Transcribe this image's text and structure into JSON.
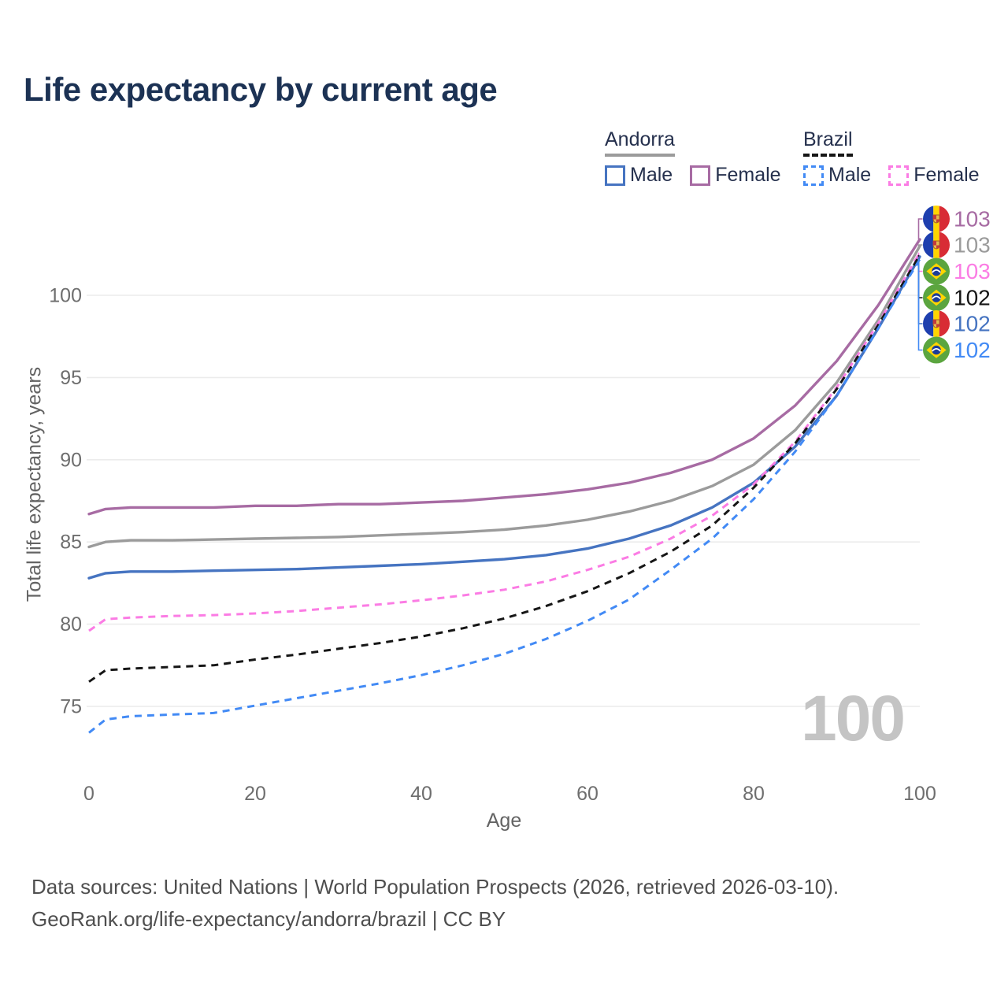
{
  "title": "Life expectancy by current age",
  "legend": {
    "groups": [
      {
        "label": "Andorra",
        "line_style": "solid",
        "items": [
          {
            "label": "Male"
          },
          {
            "label": "Female"
          }
        ]
      },
      {
        "label": "Brazil",
        "line_style": "dashed",
        "items": [
          {
            "label": "Male"
          },
          {
            "label": "Female"
          }
        ]
      }
    ]
  },
  "watermark": "100",
  "footer": {
    "line1": "Data sources: United Nations | World Population Prospects (2026, retrieved 2026-03-10).",
    "line2": "GeoRank.org/life-expectancy/andorra/brazil | CC BY"
  },
  "chart_data": {
    "type": "line",
    "title": "Life expectancy by current age",
    "xlabel": "Age",
    "ylabel": "Total life expectancy, years",
    "xlim": [
      0,
      100
    ],
    "ylim": [
      73,
      104
    ],
    "xticks": [
      0,
      20,
      40,
      60,
      80,
      100
    ],
    "yticks": [
      75,
      80,
      85,
      90,
      95,
      100
    ],
    "grid": "horizontal",
    "legend_position": "top-right",
    "x": [
      0,
      2,
      5,
      10,
      15,
      20,
      25,
      30,
      35,
      40,
      45,
      50,
      55,
      60,
      65,
      70,
      75,
      80,
      85,
      90,
      95,
      100
    ],
    "series": [
      {
        "name": "Andorra Female",
        "country": "Andorra",
        "sex": "Female",
        "flag": "andorra",
        "color": "#a76ba3",
        "dash": false,
        "end_label": "103",
        "values": [
          86.7,
          87.0,
          87.1,
          87.1,
          87.1,
          87.2,
          87.2,
          87.3,
          87.3,
          87.4,
          87.5,
          87.7,
          87.9,
          88.2,
          88.6,
          89.2,
          90.0,
          91.3,
          93.3,
          96.0,
          99.4,
          103.4
        ]
      },
      {
        "name": "Andorra",
        "country": "Andorra",
        "sex": "Both",
        "flag": "andorra",
        "color": "#9b9b9b",
        "dash": false,
        "end_label": "103",
        "values": [
          84.7,
          85.0,
          85.1,
          85.1,
          85.15,
          85.2,
          85.25,
          85.3,
          85.4,
          85.5,
          85.6,
          85.75,
          86.0,
          86.35,
          86.85,
          87.5,
          88.4,
          89.7,
          91.8,
          94.7,
          98.5,
          103.0
        ]
      },
      {
        "name": "Andorra Male",
        "country": "Andorra",
        "sex": "Male",
        "flag": "andorra",
        "color": "#4674c1",
        "dash": false,
        "end_label": "102",
        "values": [
          82.8,
          83.1,
          83.2,
          83.2,
          83.25,
          83.3,
          83.35,
          83.45,
          83.55,
          83.65,
          83.8,
          83.95,
          84.2,
          84.6,
          85.2,
          86.0,
          87.1,
          88.6,
          90.8,
          93.9,
          98.0,
          102.35
        ]
      },
      {
        "name": "Brazil Female",
        "country": "Brazil",
        "sex": "Female",
        "flag": "brazil",
        "color": "#fb7ce4",
        "dash": true,
        "end_label": "103",
        "values": [
          79.6,
          80.3,
          80.4,
          80.5,
          80.55,
          80.65,
          80.8,
          81.0,
          81.2,
          81.45,
          81.75,
          82.1,
          82.6,
          83.3,
          84.1,
          85.2,
          86.6,
          88.5,
          91.1,
          94.4,
          98.3,
          102.6
        ]
      },
      {
        "name": "Brazil",
        "country": "Brazil",
        "sex": "Both",
        "flag": "brazil",
        "color": "#161616",
        "dash": true,
        "end_label": "102",
        "values": [
          76.5,
          77.2,
          77.3,
          77.4,
          77.5,
          77.85,
          78.15,
          78.5,
          78.85,
          79.25,
          79.75,
          80.35,
          81.1,
          82.0,
          83.1,
          84.4,
          86.0,
          88.3,
          91.0,
          94.3,
          98.2,
          102.45
        ]
      },
      {
        "name": "Brazil Male",
        "country": "Brazil",
        "sex": "Male",
        "flag": "brazil",
        "color": "#428af5",
        "dash": true,
        "end_label": "102",
        "values": [
          73.4,
          74.2,
          74.4,
          74.5,
          74.6,
          75.05,
          75.5,
          75.95,
          76.4,
          76.9,
          77.5,
          78.2,
          79.1,
          80.2,
          81.5,
          83.3,
          85.2,
          87.6,
          90.5,
          93.9,
          98.0,
          102.2
        ]
      }
    ]
  }
}
